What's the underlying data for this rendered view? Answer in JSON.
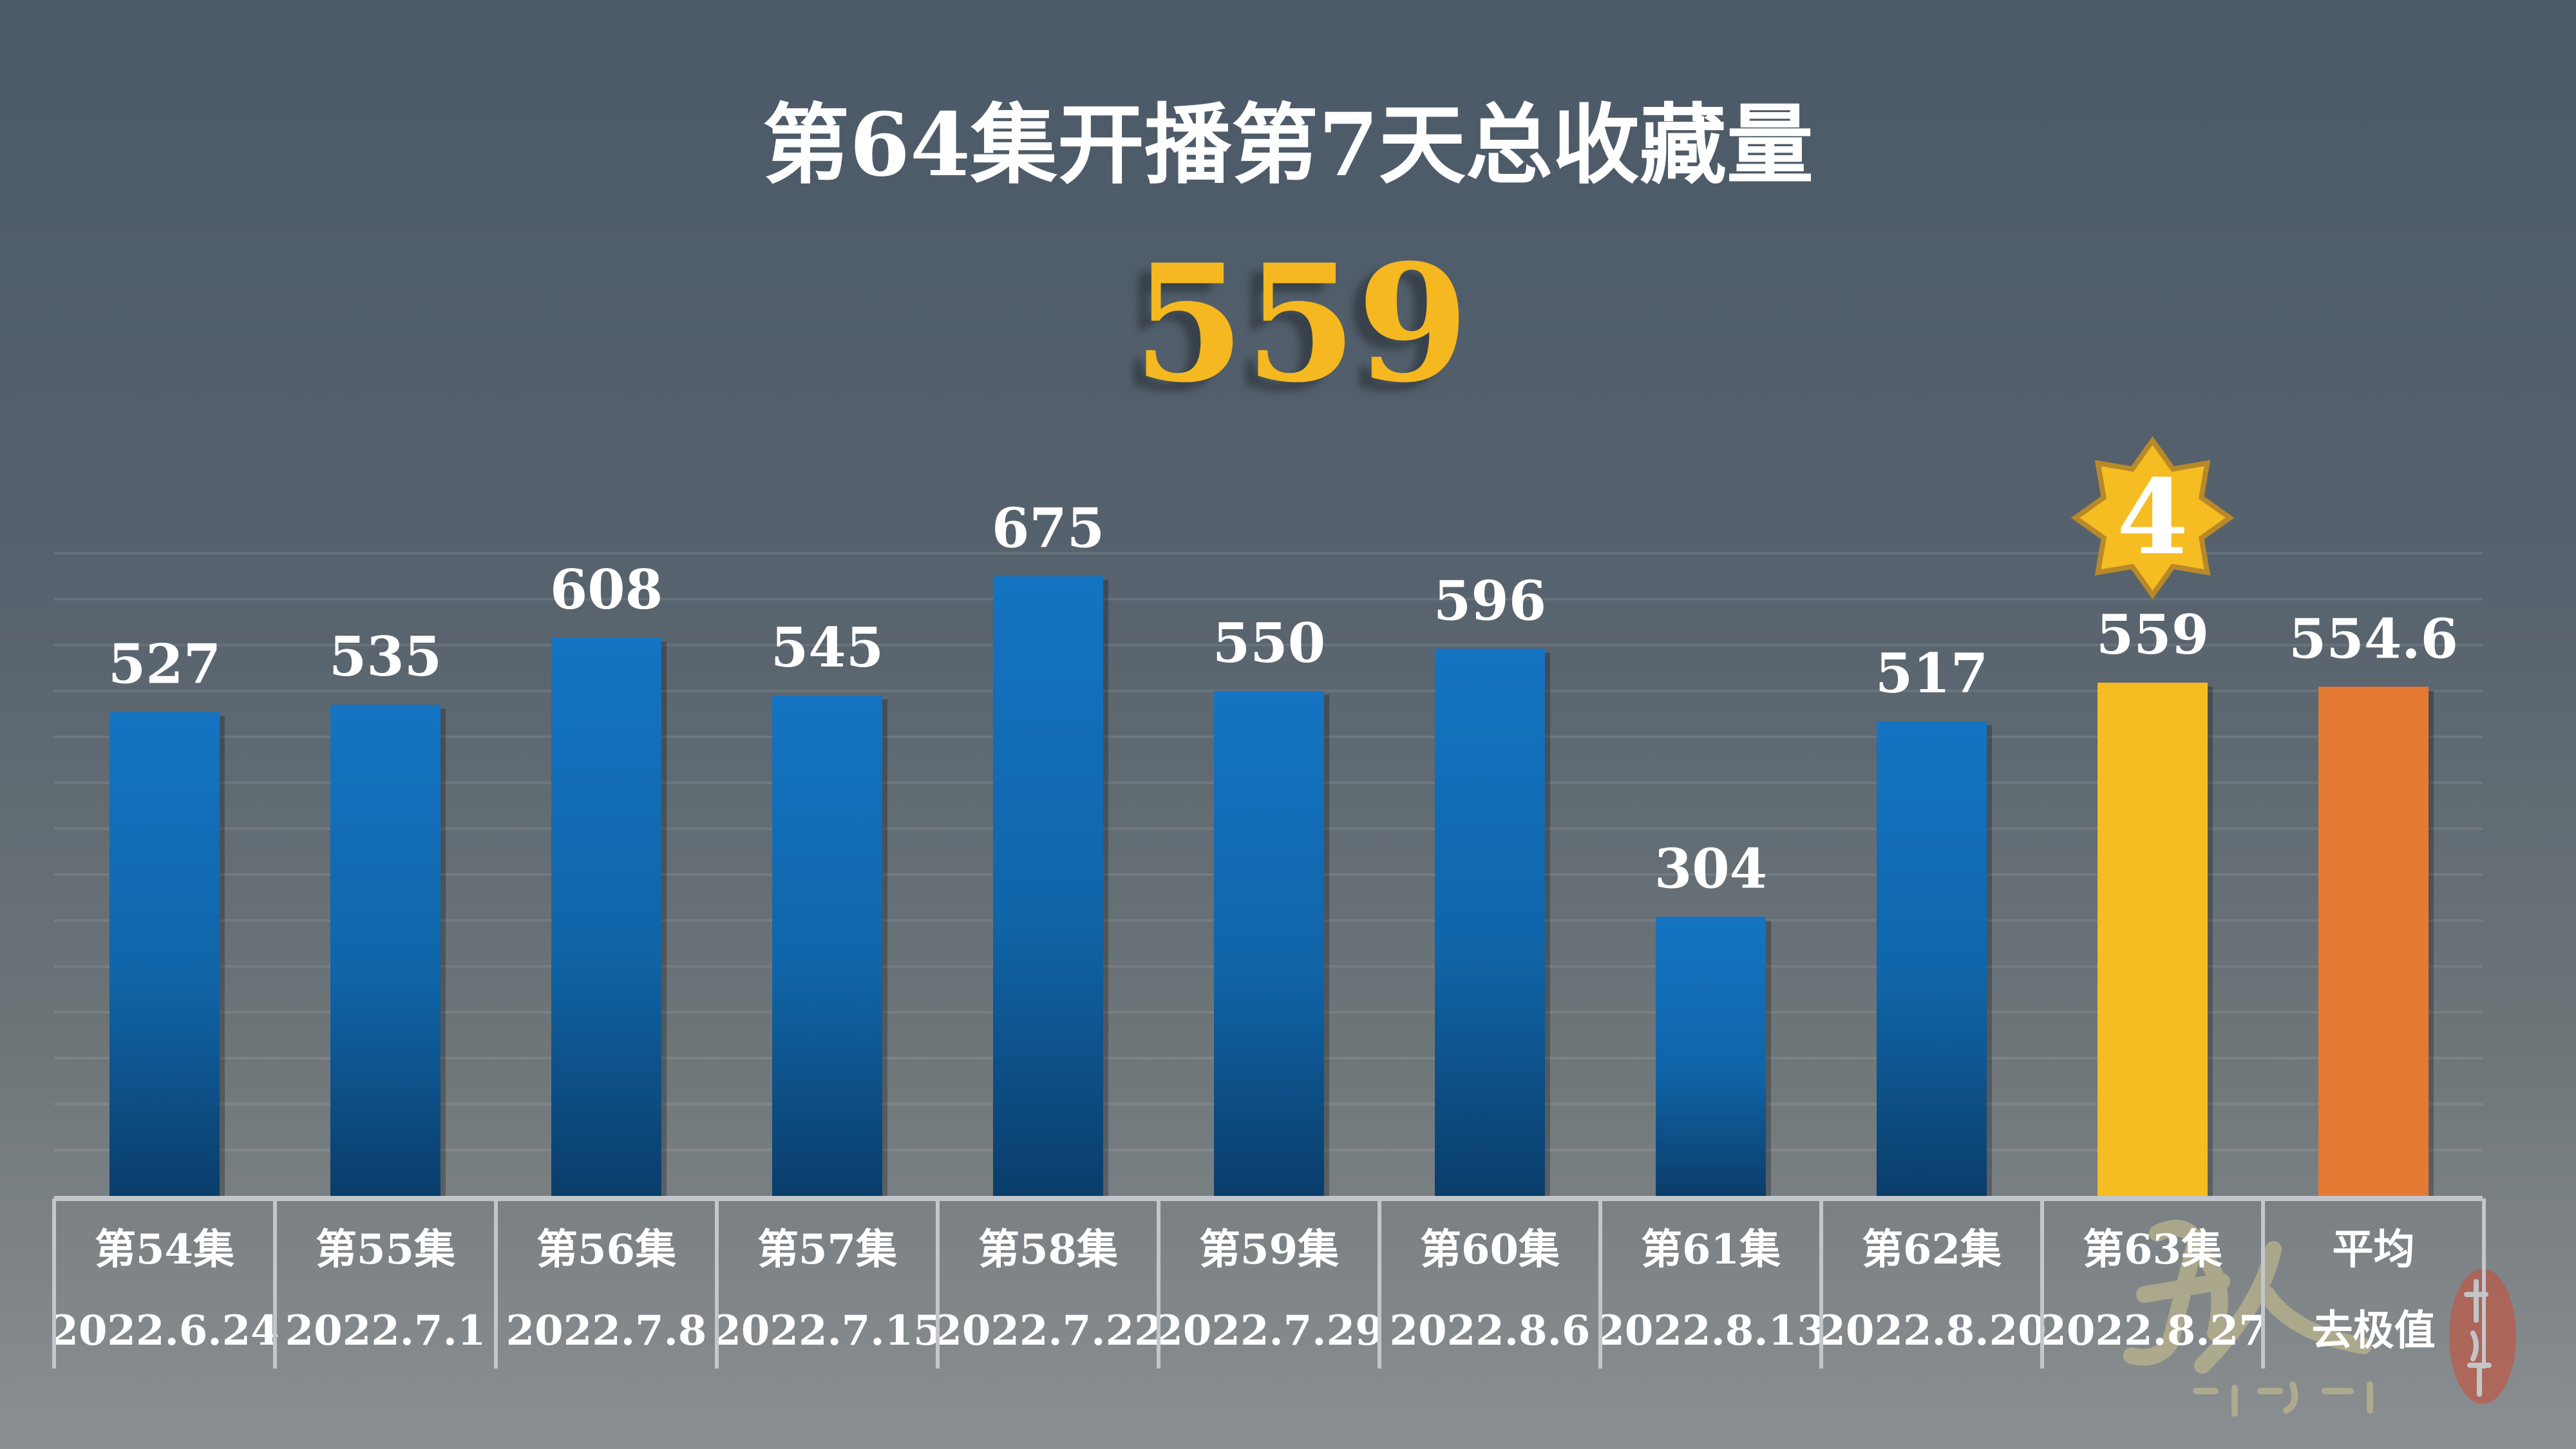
{
  "chart_data": {
    "type": "bar",
    "title": "第64集开播第7天总收藏量",
    "headline_value": "559",
    "categories": [
      "第54集",
      "第55集",
      "第56集",
      "第57集",
      "第58集",
      "第59集",
      "第60集",
      "第61集",
      "第62集",
      "第63集",
      "平均"
    ],
    "dates": [
      "2022.6.24",
      "2022.7.1",
      "2022.7.8",
      "2022.7.15",
      "2022.7.22",
      "2022.7.29",
      "2022.8.6",
      "2022.8.13",
      "2022.8.20",
      "2022.8.27",
      "去极值"
    ],
    "values": [
      527,
      535,
      608,
      545,
      675,
      550,
      596,
      304,
      517,
      559,
      554.6
    ],
    "value_labels": [
      "527",
      "535",
      "608",
      "545",
      "675",
      "550",
      "596",
      "304",
      "517",
      "559",
      "554.6"
    ],
    "bar_colors": [
      "#1270bd",
      "#1270bd",
      "#1270bd",
      "#1270bd",
      "#1270bd",
      "#1270bd",
      "#1270bd",
      "#1270bd",
      "#1270bd",
      "#f6bd22",
      "#e47a34"
    ],
    "rank_badge": {
      "category": "第63集",
      "text": "4",
      "color": "#f6bd22"
    },
    "ylim": [
      0,
      700
    ],
    "grid": true,
    "accent_color": "#f5b820"
  },
  "logo": {
    "text": "凡人修仙传 数据分析"
  }
}
